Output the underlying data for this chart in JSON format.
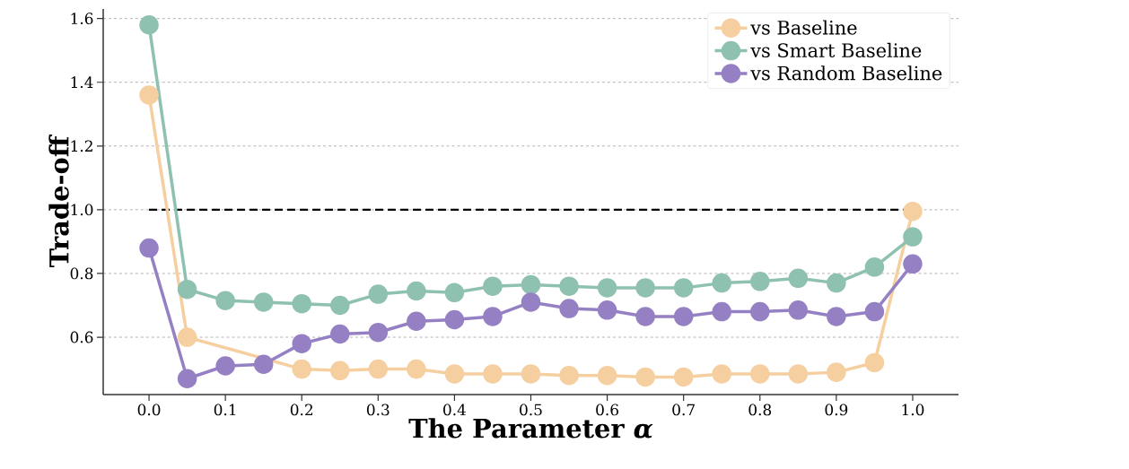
{
  "chart_data": {
    "type": "line",
    "xlabel": "The Parameter *α*",
    "ylabel": "Trade-off",
    "x": [
      0.0,
      0.05,
      0.1,
      0.15,
      0.2,
      0.25,
      0.3,
      0.35,
      0.4,
      0.45,
      0.5,
      0.55,
      0.6,
      0.65,
      0.7,
      0.75,
      0.8,
      0.85,
      0.9,
      0.95,
      1.0
    ],
    "series": [
      {
        "name": "vs Baseline",
        "color": "#f5cfa0",
        "values": [
          1.36,
          0.6,
          null,
          null,
          0.5,
          0.495,
          0.5,
          0.5,
          0.485,
          0.485,
          0.485,
          0.48,
          0.48,
          0.475,
          0.475,
          0.485,
          0.485,
          0.485,
          0.49,
          0.52,
          0.995
        ]
      },
      {
        "name": "vs Smart Baseline",
        "color": "#8fc1b1",
        "values": [
          1.58,
          0.75,
          0.715,
          0.71,
          0.705,
          0.7,
          0.735,
          0.745,
          0.74,
          0.76,
          0.765,
          0.76,
          0.755,
          0.755,
          0.755,
          0.77,
          0.775,
          0.785,
          0.77,
          0.82,
          0.915
        ]
      },
      {
        "name": "vs Random Baseline",
        "color": "#9580c4",
        "values": [
          0.88,
          0.47,
          0.51,
          0.515,
          0.58,
          0.61,
          0.615,
          0.65,
          0.655,
          0.665,
          0.71,
          0.69,
          0.685,
          0.665,
          0.665,
          0.68,
          0.68,
          0.685,
          0.665,
          0.68,
          0.83
        ]
      }
    ],
    "xlim": [
      -0.06,
      1.06
    ],
    "ylim": [
      0.42,
      1.63
    ],
    "xticks": [
      {
        "value": 0,
        "label": "0.0"
      },
      0.1,
      0.2,
      0.3,
      0.4,
      0.5,
      0.6,
      0.7,
      0.8,
      0.9,
      {
        "value": 1,
        "label": "1.0"
      }
    ],
    "yticks": [
      0.6,
      0.8,
      {
        "value": 1,
        "label": "1.0"
      },
      1.2,
      1.4,
      1.6
    ],
    "ref_lines": [
      {
        "axis": "y",
        "value": 1,
        "color": "#000000",
        "line_style": "dashed"
      }
    ],
    "grid": "y",
    "legend": "top right",
    "marker": "circle",
    "line_style": "solid"
  }
}
